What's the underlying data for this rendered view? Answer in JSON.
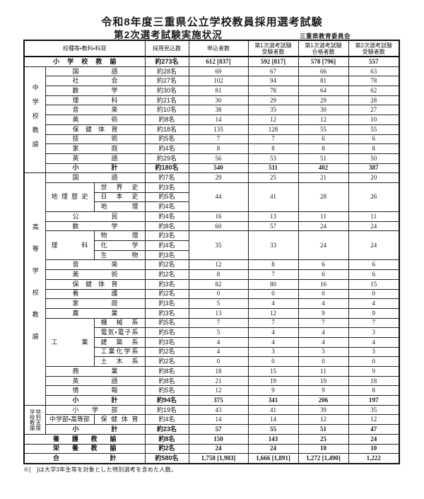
{
  "page": {
    "title_line1": "令和8年度三重県公立学校教員採用選考試験",
    "title_line2": "第2次選考試験実施状況",
    "organization": "三重県教育委員会",
    "footnote": "※[　]は大学3年生等を対象とした特別選考を含めた人数。"
  },
  "table": {
    "headers": [
      "校種等・教科・科目",
      "採用見込数",
      "申込者数",
      "第1次選考試験\n受験者数",
      "第1次選考試験\n合格者数",
      "第2次選考試験\n受験者数"
    ],
    "sections": [
      {
        "id": "elementary",
        "label": null,
        "rows": [
          {
            "kind": "full",
            "subject": "小学校教諭",
            "quota": "約273名",
            "values": [
              "612 [837]",
              "592 [817]",
              "578 [796]",
              "557"
            ],
            "bold": true
          }
        ]
      },
      {
        "id": "junior-high",
        "label": "中学校教諭",
        "label_style": "vertical-jh",
        "rows": [
          {
            "kind": "simple",
            "subject": "国語",
            "quota": "約28名",
            "values": [
              "69",
              "67",
              "66",
              "63"
            ]
          },
          {
            "kind": "simple",
            "subject": "社会",
            "quota": "約27名",
            "values": [
              "102",
              "94",
              "81",
              "78"
            ]
          },
          {
            "kind": "simple",
            "subject": "数学",
            "quota": "約30名",
            "values": [
              "81",
              "78",
              "64",
              "62"
            ]
          },
          {
            "kind": "simple",
            "subject": "理科",
            "quota": "約21名",
            "values": [
              "30",
              "29",
              "29",
              "28"
            ]
          },
          {
            "kind": "simple",
            "subject": "音楽",
            "quota": "約10名",
            "values": [
              "38",
              "35",
              "30",
              "27"
            ]
          },
          {
            "kind": "simple",
            "subject": "美術",
            "quota": "約8名",
            "values": [
              "14",
              "12",
              "12",
              "10"
            ]
          },
          {
            "kind": "simple",
            "subject": "保健体育",
            "quota": "約18名",
            "values": [
              "135",
              "128",
              "55",
              "55"
            ]
          },
          {
            "kind": "simple",
            "subject": "技術",
            "quota": "約5名",
            "values": [
              "7",
              "7",
              "6",
              "6"
            ]
          },
          {
            "kind": "simple",
            "subject": "家庭",
            "quota": "約4名",
            "values": [
              "8",
              "8",
              "8",
              "8"
            ]
          },
          {
            "kind": "simple",
            "subject": "英語",
            "quota": "約29名",
            "values": [
              "56",
              "53",
              "51",
              "50"
            ]
          },
          {
            "kind": "simple",
            "subject": "小計",
            "quota": "約180名",
            "values": [
              "540",
              "511",
              "402",
              "387"
            ],
            "bold": true
          }
        ]
      },
      {
        "id": "senior-high",
        "label": "高等学校教諭",
        "label_style": "vertical-sh",
        "rows": [
          {
            "kind": "simple",
            "subject": "国語",
            "quota": "約7名",
            "values": [
              "29",
              "25",
              "21",
              "20"
            ]
          },
          {
            "kind": "group-start",
            "group": "地理歴史",
            "span": 3,
            "sub": "世界史",
            "quota": "約3名",
            "merged_values": [
              "44",
              "41",
              "28",
              "26"
            ]
          },
          {
            "kind": "group-cont",
            "sub": "日本史",
            "quota": "約5名"
          },
          {
            "kind": "group-cont",
            "sub": "地理",
            "quota": "約4名"
          },
          {
            "kind": "simple",
            "subject": "公民",
            "quota": "約4名",
            "values": [
              "16",
              "13",
              "11",
              "11"
            ]
          },
          {
            "kind": "simple",
            "subject": "数学",
            "quota": "約8名",
            "values": [
              "60",
              "57",
              "24",
              "24"
            ]
          },
          {
            "kind": "group-start",
            "group": "理科",
            "span": 3,
            "sub": "物理",
            "quota": "約3名",
            "merged_values": [
              "35",
              "33",
              "24",
              "24"
            ]
          },
          {
            "kind": "group-cont",
            "sub": "化学",
            "quota": "約4名"
          },
          {
            "kind": "group-cont",
            "sub": "生物",
            "quota": "約3名"
          },
          {
            "kind": "simple",
            "subject": "音楽",
            "quota": "約2名",
            "values": [
              "12",
              "8",
              "6",
              "6"
            ]
          },
          {
            "kind": "simple",
            "subject": "美術",
            "quota": "約2名",
            "values": [
              "8",
              "7",
              "6",
              "6"
            ]
          },
          {
            "kind": "simple",
            "subject": "保健体育",
            "quota": "約3名",
            "values": [
              "82",
              "80",
              "16",
              "15"
            ]
          },
          {
            "kind": "simple",
            "subject": "看護",
            "quota": "約2名",
            "values": [
              "0",
              "0",
              "0",
              "0"
            ]
          },
          {
            "kind": "simple",
            "subject": "家庭",
            "quota": "約3名",
            "values": [
              "5",
              "4",
              "4",
              "4"
            ]
          },
          {
            "kind": "simple",
            "subject": "農業",
            "quota": "約3名",
            "values": [
              "13",
              "12",
              "9",
              "9"
            ]
          },
          {
            "kind": "group-start",
            "group": "工業",
            "span": 5,
            "sub": "機械系",
            "quota": "約5名",
            "values": [
              "7",
              "7",
              "7",
              "7"
            ]
          },
          {
            "kind": "group-cont",
            "sub": "電気・電子系",
            "quota": "約5名",
            "values": [
              "5",
              "4",
              "4",
              "3"
            ]
          },
          {
            "kind": "group-cont",
            "sub": "建築系",
            "quota": "約3名",
            "values": [
              "4",
              "4",
              "4",
              "4"
            ]
          },
          {
            "kind": "group-cont",
            "sub": "工業化学系",
            "quota": "約2名",
            "values": [
              "4",
              "3",
              "3",
              "3"
            ]
          },
          {
            "kind": "group-cont",
            "sub": "土木系",
            "quota": "約2名",
            "values": [
              "0",
              "0",
              "0",
              "0"
            ]
          },
          {
            "kind": "simple",
            "subject": "商業",
            "quota": "約8名",
            "values": [
              "18",
              "15",
              "11",
              "9"
            ]
          },
          {
            "kind": "simple",
            "subject": "英語",
            "quota": "約8名",
            "values": [
              "21",
              "19",
              "19",
              "18"
            ]
          },
          {
            "kind": "simple",
            "subject": "情報",
            "quota": "約5名",
            "values": [
              "12",
              "9",
              "9",
              "8"
            ]
          },
          {
            "kind": "simple",
            "subject": "小計",
            "quota": "約94名",
            "values": [
              "375",
              "341",
              "206",
              "197"
            ],
            "bold": true
          }
        ]
      },
      {
        "id": "special-support",
        "label": "特別支援\n学校教諭",
        "label_style": "compact",
        "rows": [
          {
            "kind": "simple",
            "subject": "小学部",
            "quota": "約19名",
            "values": [
              "43",
              "41",
              "39",
              "35"
            ]
          },
          {
            "kind": "pair",
            "left": "中学部・高等部",
            "subject": "保健体育",
            "quota": "約4名",
            "values": [
              "14",
              "14",
              "12",
              "12"
            ]
          },
          {
            "kind": "simple",
            "subject": "小計",
            "quota": "約23名",
            "values": [
              "57",
              "55",
              "51",
              "47"
            ],
            "bold": true
          }
        ]
      },
      {
        "id": "nursing-teacher",
        "label": null,
        "rows": [
          {
            "kind": "full",
            "subject": "養護教諭",
            "quota": "約8名",
            "values": [
              "150",
              "143",
              "25",
              "24"
            ],
            "bold": true
          }
        ]
      },
      {
        "id": "nutrition-teacher",
        "label": null,
        "rows": [
          {
            "kind": "full",
            "subject": "栄養教諭",
            "quota": "約2名",
            "values": [
              "24",
              "24",
              "10",
              "10"
            ],
            "bold": true
          }
        ]
      },
      {
        "id": "grand-total",
        "label": null,
        "rows": [
          {
            "kind": "full",
            "subject": "合計",
            "quota": "約580名",
            "values": [
              "1,758 [1,983]",
              "1,666 [1,891]",
              "1,272 [1,490]",
              "1,222"
            ],
            "bold": true
          }
        ]
      }
    ]
  }
}
